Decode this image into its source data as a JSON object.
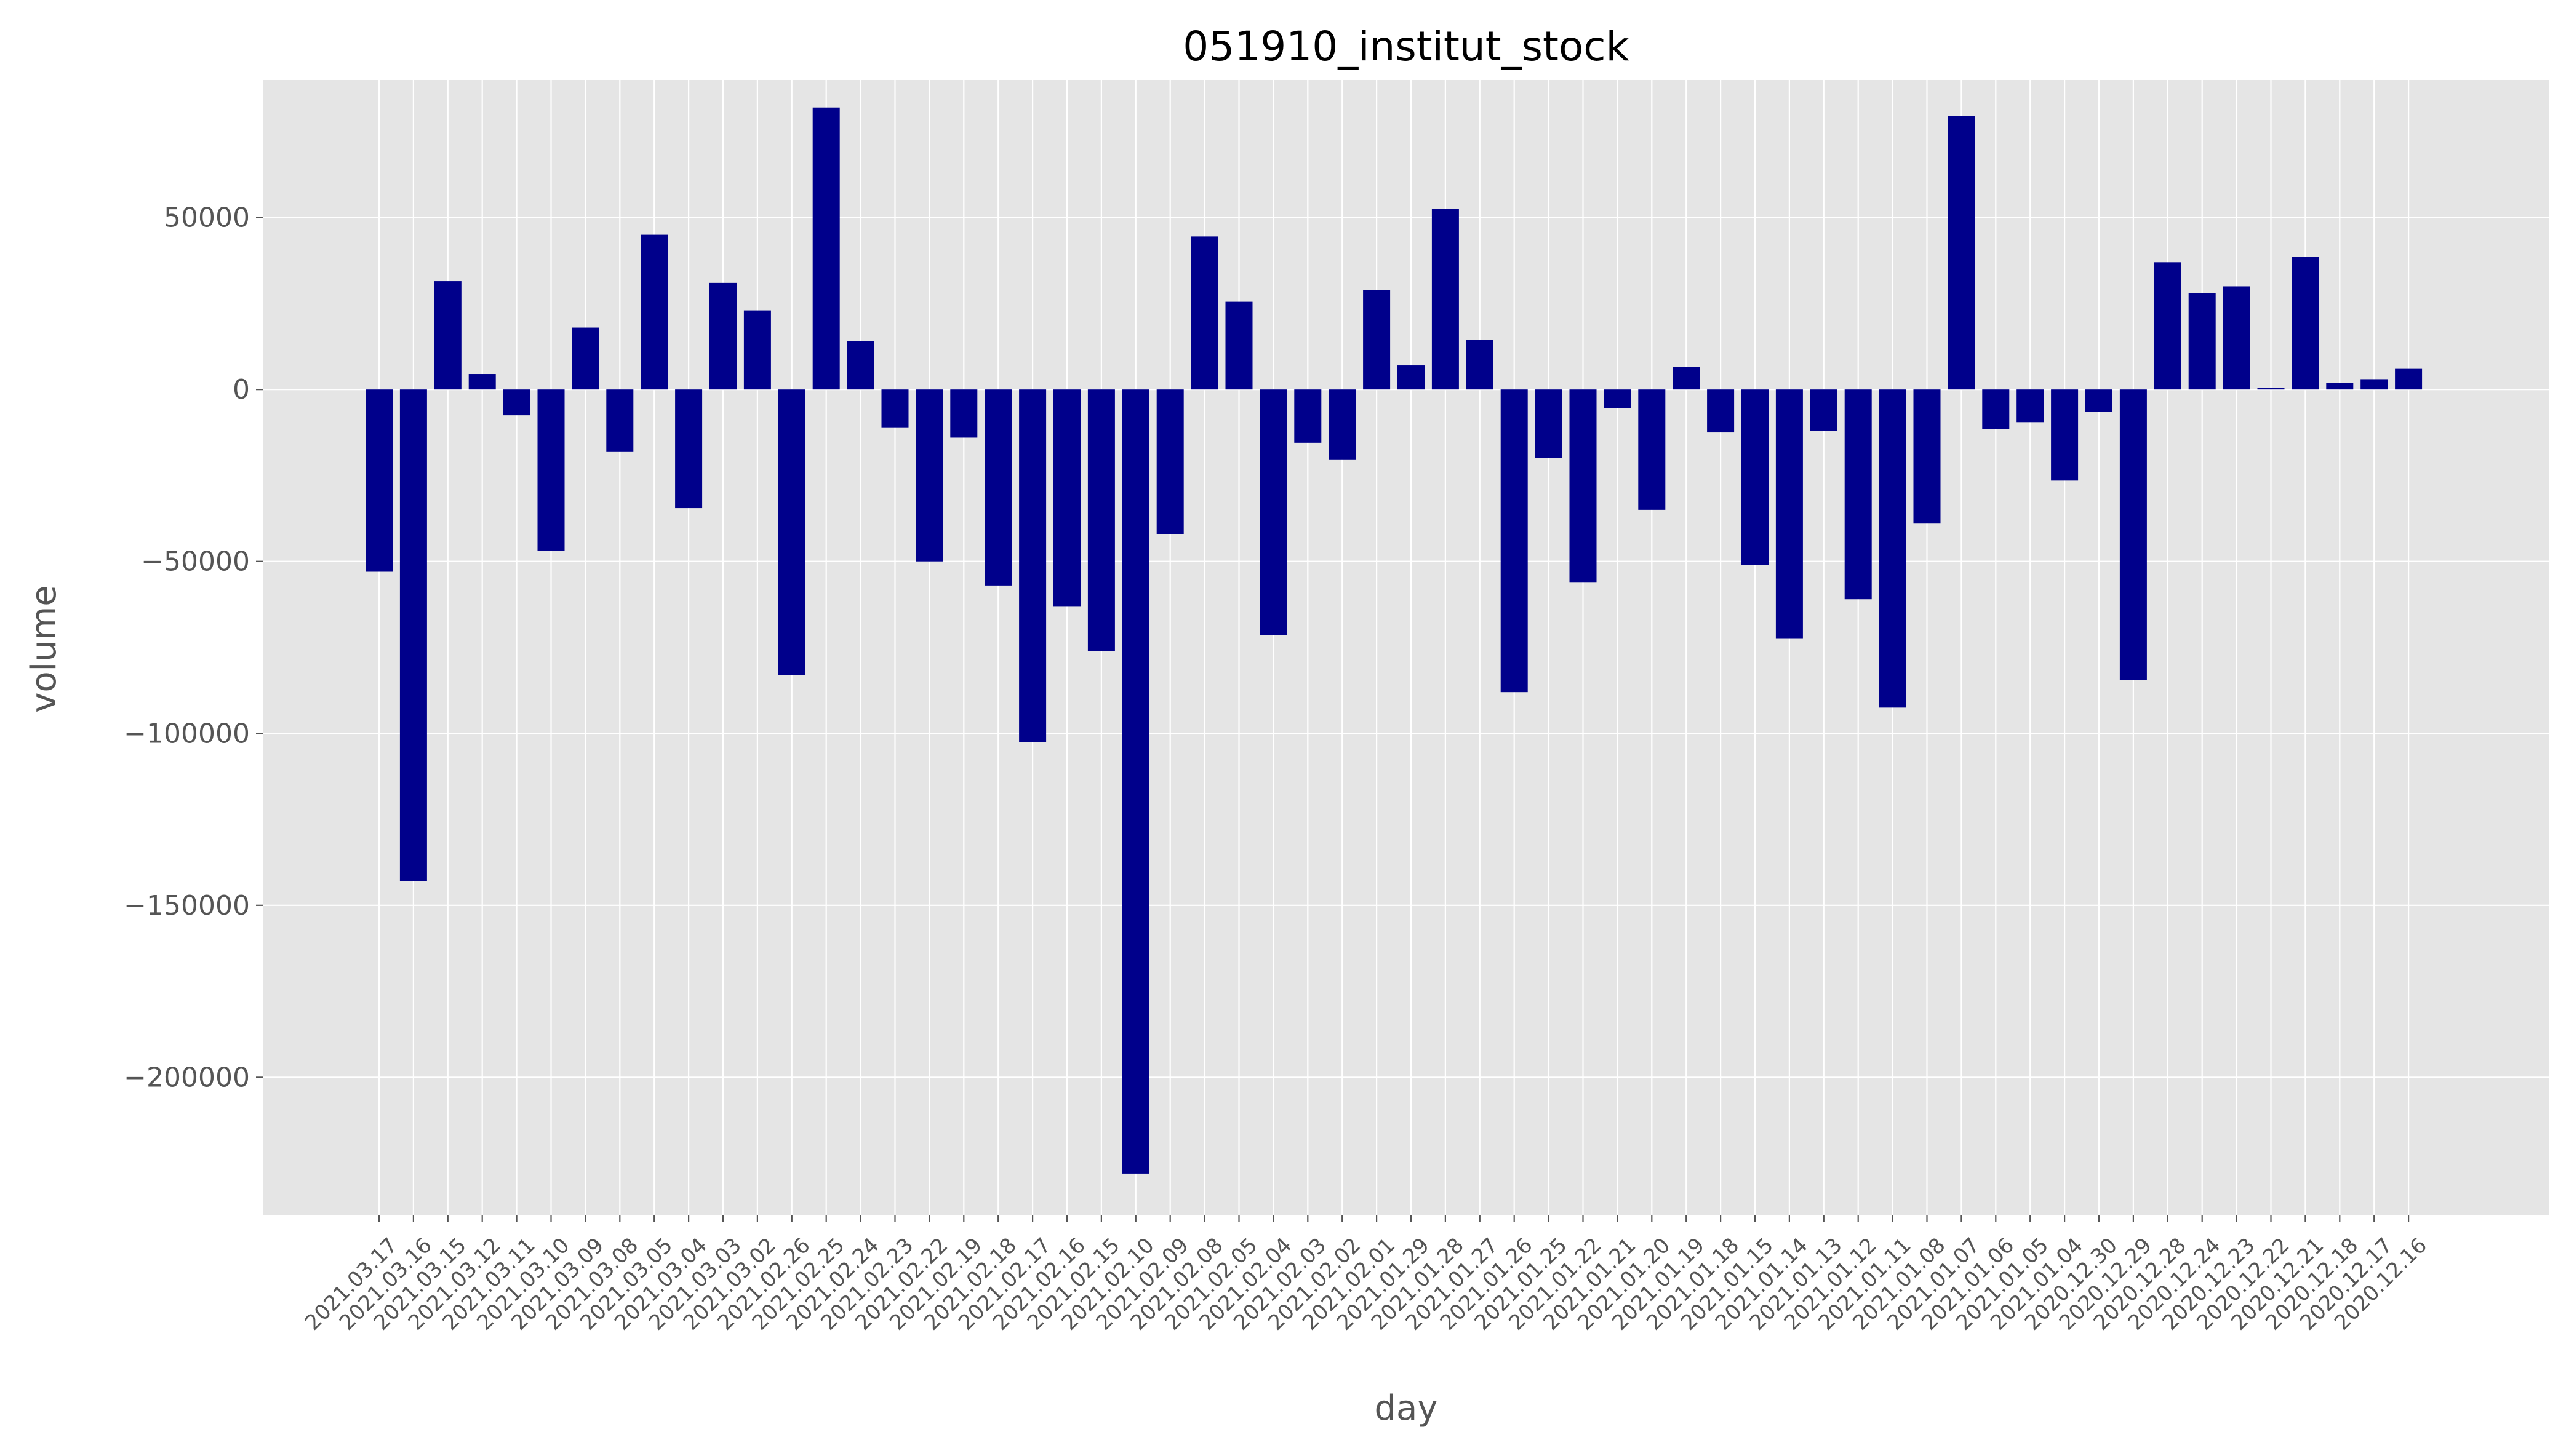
{
  "chart_data": {
    "type": "bar",
    "title": "051910_institut_stock",
    "xlabel": "day",
    "ylabel": "volume",
    "ylim": [
      -240000,
      90000
    ],
    "yticks": [
      50000,
      0,
      -50000,
      -100000,
      -150000,
      -200000
    ],
    "ytick_labels": [
      "50000",
      "0",
      "−50000",
      "−100000",
      "−150000",
      "−200000"
    ],
    "grid": true,
    "style": "ggplot",
    "bar_color": "#00008b",
    "panel_color": "#e5e5e5",
    "grid_color": "#ffffff",
    "categories": [
      "2021.03.17",
      "2021.03.16",
      "2021.03.15",
      "2021.03.12",
      "2021.03.11",
      "2021.03.10",
      "2021.03.09",
      "2021.03.08",
      "2021.03.05",
      "2021.03.04",
      "2021.03.03",
      "2021.03.02",
      "2021.02.26",
      "2021.02.25",
      "2021.02.24",
      "2021.02.23",
      "2021.02.22",
      "2021.02.19",
      "2021.02.18",
      "2021.02.17",
      "2021.02.16",
      "2021.02.15",
      "2021.02.10",
      "2021.02.09",
      "2021.02.08",
      "2021.02.05",
      "2021.02.04",
      "2021.02.03",
      "2021.02.02",
      "2021.02.01",
      "2021.01.29",
      "2021.01.28",
      "2021.01.27",
      "2021.01.26",
      "2021.01.25",
      "2021.01.22",
      "2021.01.21",
      "2021.01.20",
      "2021.01.19",
      "2021.01.18",
      "2021.01.15",
      "2021.01.14",
      "2021.01.13",
      "2021.01.12",
      "2021.01.11",
      "2021.01.08",
      "2021.01.07",
      "2021.01.06",
      "2021.01.05",
      "2021.01.04",
      "2020.12.30",
      "2020.12.29",
      "2020.12.28",
      "2020.12.24",
      "2020.12.23",
      "2020.12.22",
      "2020.12.21",
      "2020.12.18",
      "2020.12.17",
      "2020.12.16"
    ],
    "values": [
      -53000,
      -143000,
      31500,
      4500,
      -7500,
      -47000,
      18000,
      -18000,
      45000,
      -34500,
      31000,
      23000,
      -83000,
      82000,
      14000,
      -11000,
      -50000,
      -14000,
      -57000,
      -102500,
      -63000,
      -76000,
      -228000,
      -42000,
      44500,
      25500,
      -71500,
      -15500,
      -20500,
      29000,
      7000,
      52500,
      14500,
      -88000,
      -20000,
      -56000,
      -5500,
      -35000,
      6500,
      -12500,
      -51000,
      -72500,
      -12000,
      -61000,
      -92500,
      -39000,
      79500,
      -11500,
      -9500,
      -26500,
      -6500,
      -84500,
      37000,
      28000,
      30000,
      500,
      38500,
      2000,
      3000,
      6000
    ]
  }
}
